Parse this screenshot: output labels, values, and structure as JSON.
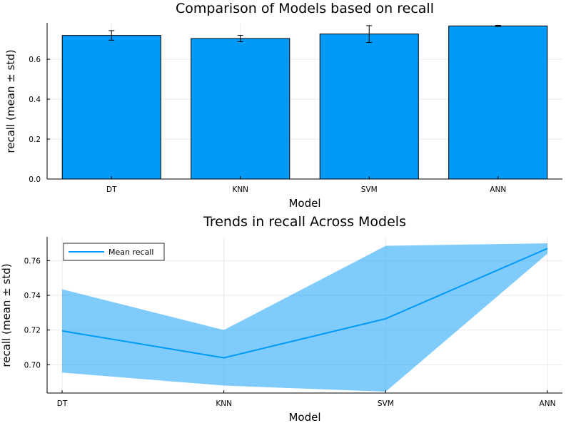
{
  "chart_data": [
    {
      "type": "bar",
      "title": "Comparison of Models based on recall",
      "xlabel": "Model",
      "ylabel": "recall (mean ± std)",
      "categories": [
        "DT",
        "KNN",
        "SVM",
        "ANN"
      ],
      "values": [
        0.7195,
        0.704,
        0.7265,
        0.767
      ],
      "errors": [
        0.024,
        0.016,
        0.042,
        0.003
      ],
      "ylim": [
        0,
        0.7825
      ],
      "yticks": [
        0.0,
        0.2,
        0.4,
        0.6
      ],
      "ytick_labels": [
        "0.0",
        "0.2",
        "0.4",
        "0.6"
      ],
      "grid": true,
      "colors": {
        "bar": "#009af9",
        "edge": "#000000"
      }
    },
    {
      "type": "line",
      "title": "Trends in recall Across Models",
      "xlabel": "Model",
      "ylabel": "recall (mean ± std)",
      "categories": [
        "DT",
        "KNN",
        "SVM",
        "ANN"
      ],
      "series": [
        {
          "name": "Mean recall",
          "values": [
            0.7195,
            0.704,
            0.7265,
            0.767
          ],
          "band_lower": [
            0.6955,
            0.688,
            0.6845,
            0.764
          ],
          "band_upper": [
            0.7435,
            0.72,
            0.7685,
            0.77
          ]
        }
      ],
      "ylim": [
        0.6837,
        0.7737
      ],
      "yticks": [
        0.7,
        0.72,
        0.74,
        0.76
      ],
      "ytick_labels": [
        "0.70",
        "0.72",
        "0.74",
        "0.76"
      ],
      "grid": true,
      "legend": "top-left",
      "colors": {
        "line": "#009af9",
        "band": "#009af9"
      }
    }
  ]
}
